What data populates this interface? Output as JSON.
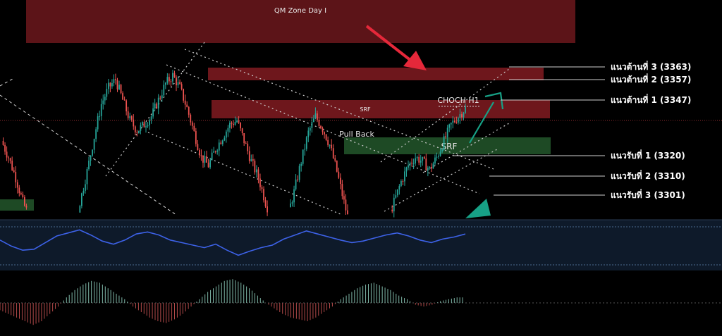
{
  "chart_data": {
    "type": "candlestick",
    "zones": {
      "qm_zone": {
        "label": "QM Zone Day I"
      },
      "srf_upper": {
        "label": "SRF"
      },
      "srf_lower": {
        "label": "SRF"
      }
    },
    "annotations": {
      "choch": "CHOCH H1",
      "pull_back": "Pull Back"
    },
    "levels": [
      {
        "label": "แนวต้านที่ 3 (3363)",
        "price": 3363,
        "kind": "resistance"
      },
      {
        "label": "แนวต้านที่ 2 (3357)",
        "price": 3357,
        "kind": "resistance"
      },
      {
        "label": "แนวต้านที่ 1 (3347)",
        "price": 3347,
        "kind": "resistance"
      },
      {
        "label": "แนวรับที่ 1 (3320)",
        "price": 3320,
        "kind": "support"
      },
      {
        "label": "แนวรับที่ 2 (3310)",
        "price": 3310,
        "kind": "support"
      },
      {
        "label": "แนวรับที่ 3 (3301)",
        "price": 3301,
        "kind": "support"
      }
    ],
    "price_path": [
      3330,
      3322,
      3312,
      3300,
      3292,
      3286,
      3275,
      3262,
      3258,
      3268,
      3285,
      3300,
      3315,
      3332,
      3348,
      3356,
      3360,
      3350,
      3340,
      3335,
      3338,
      3342,
      3350,
      3358,
      3362,
      3356,
      3346,
      3334,
      3322,
      3318,
      3326,
      3332,
      3338,
      3340,
      3330,
      3320,
      3312,
      3300,
      3290,
      3284,
      3292,
      3305,
      3320,
      3334,
      3342,
      3336,
      3328,
      3315,
      3300,
      3286,
      3274,
      3268,
      3272,
      3280,
      3290,
      3300,
      3310,
      3318,
      3322,
      3320,
      3316,
      3322,
      3330,
      3338,
      3342,
      3346
    ],
    "oscillator": [
      60,
      48,
      40,
      42,
      55,
      68,
      74,
      80,
      70,
      58,
      52,
      60,
      72,
      76,
      70,
      60,
      55,
      50,
      45,
      52,
      40,
      30,
      38,
      45,
      50,
      62,
      70,
      78,
      72,
      66,
      60,
      55,
      58,
      64,
      70,
      74,
      68,
      60,
      55,
      62,
      66,
      72
    ],
    "histogram": [
      -4,
      -6,
      -8,
      -10,
      -12,
      -10,
      -6,
      -2,
      3,
      7,
      10,
      12,
      11,
      8,
      5,
      2,
      -2,
      -5,
      -8,
      -10,
      -11,
      -9,
      -6,
      -2,
      2,
      6,
      9,
      12,
      13,
      11,
      8,
      4,
      0,
      -3,
      -6,
      -8,
      -9,
      -10,
      -8,
      -5,
      -2,
      2,
      5,
      8,
      10,
      11,
      9,
      7,
      4,
      2,
      -1,
      -2,
      -1,
      1,
      2,
      3
    ],
    "colors": {
      "bull": "#26a69a",
      "bear": "#ef5350",
      "zone_red": "#7a1a1f",
      "zone_green": "#1e4a25",
      "oscillator_line": "#3d62e8",
      "arrow_red": "#e5283a",
      "arrow_teal": "#17a186"
    }
  }
}
